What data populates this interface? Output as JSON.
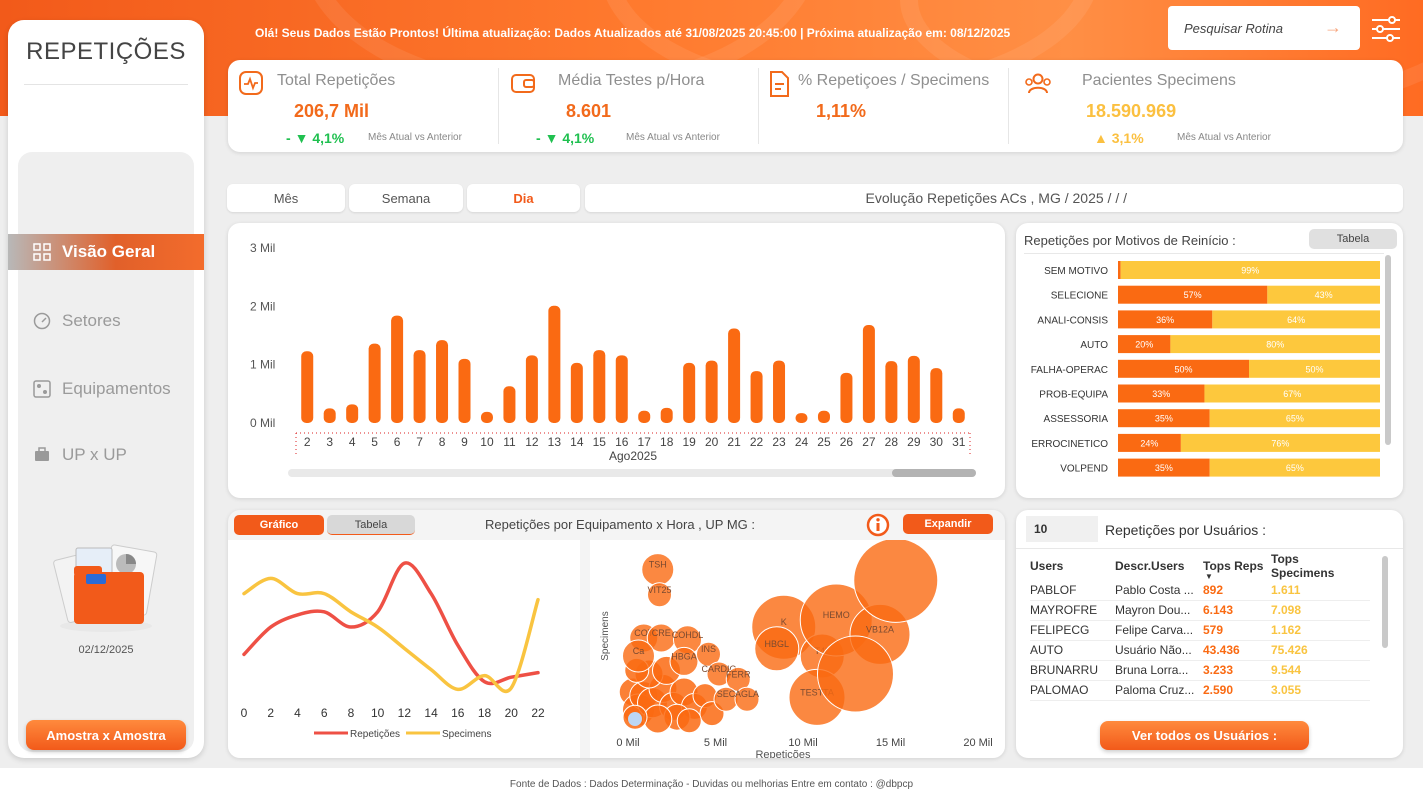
{
  "header": {
    "greeting": "Olá! Seus Dados Estão Prontos! Última atualização: Dados Atualizados até 31/08/2025 20:45:00 | Próxima atualização em: 08/12/2025",
    "search_placeholder": "Pesquisar Rotina"
  },
  "sidebar": {
    "title": "REPETIÇÕES",
    "items": [
      {
        "label": "Visão Geral",
        "icon": "grid-icon",
        "active": true
      },
      {
        "label": "Setores",
        "icon": "gauge-icon",
        "active": false
      },
      {
        "label": "Equipamentos",
        "icon": "equipment-icon",
        "active": false
      },
      {
        "label": "UP x UP",
        "icon": "briefcase-icon",
        "active": false
      }
    ],
    "date": "02/12/2025",
    "button": "Amostra x Amostra"
  },
  "kpis": [
    {
      "title": "Total Repetições",
      "value": "206,7 Mil",
      "delta": "4,1%",
      "delta_prefix": "- ",
      "trend": "down",
      "comparison": "Mês Atual vs Anterior",
      "icon": "activity-icon"
    },
    {
      "title": "Média Testes p/Hora",
      "value": "8.601",
      "delta": "4,1%",
      "delta_prefix": "- ",
      "trend": "down",
      "comparison": "Mês Atual vs Anterior",
      "icon": "wallet-icon"
    },
    {
      "title": "% Repetiçoes / Specimens",
      "value": "1,11%",
      "icon": "document-icon"
    },
    {
      "title": "Pacientes Specimens",
      "value": "18.590.969",
      "delta": "3,1%",
      "trend": "up",
      "comparison": "Mês Atual vs Anterior",
      "icon": "users-icon"
    }
  ],
  "period_tabs": {
    "month": "Mês",
    "week": "Semana",
    "day": "Dia",
    "selected": "Dia"
  },
  "evolution_title": "Evolução Repetições ACs , MG / 2025 / / /",
  "colors": {
    "orange": "#fa6a12",
    "yellow": "#fdc83d",
    "red": "#ee5045",
    "gold": "#f9c440"
  },
  "chart_data": [
    {
      "type": "bar",
      "title": "",
      "xlabel": "Ago2025",
      "ylabel": "",
      "y_ticks": [
        "0 Mil",
        "1 Mil",
        "2 Mil",
        "3 Mil"
      ],
      "ylim": [
        0,
        3000
      ],
      "categories": [
        "2",
        "3",
        "4",
        "5",
        "6",
        "7",
        "8",
        "9",
        "10",
        "11",
        "12",
        "13",
        "14",
        "15",
        "16",
        "17",
        "18",
        "19",
        "20",
        "21",
        "22",
        "23",
        "24",
        "25",
        "26",
        "27",
        "28",
        "29",
        "30",
        "31"
      ],
      "values": [
        1230,
        250,
        320,
        1360,
        1840,
        1250,
        1420,
        1100,
        190,
        630,
        1160,
        2010,
        1030,
        1250,
        1160,
        210,
        260,
        1030,
        1070,
        1620,
        890,
        1070,
        170,
        210,
        860,
        1680,
        1060,
        1150,
        940,
        250
      ]
    },
    {
      "type": "bar",
      "title": "Repetições por Motivos de Reinício :",
      "stacked": true,
      "categories": [
        "SEM MOTIVO",
        "SELECIONE",
        "ANALI-CONSIS",
        "AUTO",
        "FALHA-OPERAC",
        "PROB-EQUIPA",
        "ASSESSORIA",
        "ERROCINETICO",
        "VOLPEND"
      ],
      "series": [
        {
          "values": [
            1,
            57,
            36,
            20,
            50,
            33,
            35,
            24,
            35
          ],
          "labels": [
            "",
            "57%",
            "36%",
            "20%",
            "50%",
            "33%",
            "35%",
            "24%",
            "35%"
          ]
        },
        {
          "values": [
            99,
            43,
            64,
            80,
            50,
            67,
            65,
            76,
            65
          ],
          "labels": [
            "99%",
            "43%",
            "64%",
            "80%",
            "50%",
            "67%",
            "65%",
            "76%",
            "65%"
          ]
        }
      ]
    },
    {
      "type": "line",
      "title": "Repetições por Equipamento x Hora , UP MG :",
      "x": [
        0,
        2,
        4,
        6,
        8,
        10,
        12,
        14,
        16,
        18,
        20,
        22
      ],
      "x_ticks": [
        "0",
        "2",
        "4",
        "6",
        "8",
        "10",
        "12",
        "14",
        "16",
        "18",
        "20",
        "22"
      ],
      "series": [
        {
          "name": "Repetições",
          "values": [
            0.3,
            0.48,
            0.56,
            0.58,
            0.48,
            0.58,
            0.9,
            0.7,
            0.36,
            0.12,
            0.15,
            0.18
          ]
        },
        {
          "name": "Specimens",
          "values": [
            0.7,
            0.8,
            0.7,
            0.7,
            0.58,
            0.48,
            0.34,
            0.2,
            0.07,
            0.16,
            0.08,
            0.66
          ]
        }
      ]
    },
    {
      "type": "scatter",
      "xlabel": "Repetições",
      "ylabel": "Specimens",
      "x_ticks": [
        "0 Mil",
        "5 Mil",
        "10 Mil",
        "15 Mil",
        "20 Mil"
      ],
      "xlim": [
        0,
        20000
      ],
      "points": [
        {
          "label": "TSH",
          "x": 1700,
          "y": 0.88,
          "size": 16
        },
        {
          "label": "VIT25",
          "x": 1800,
          "y": 0.74,
          "size": 12
        },
        {
          "label": "COT",
          "x": 900,
          "y": 0.5,
          "size": 14
        },
        {
          "label": "CRE",
          "x": 1900,
          "y": 0.5,
          "size": 14
        },
        {
          "label": "COHDL",
          "x": 3400,
          "y": 0.49,
          "size": 14
        },
        {
          "label": "Ca",
          "x": 600,
          "y": 0.4,
          "size": 16
        },
        {
          "label": "HBGA",
          "x": 3200,
          "y": 0.37,
          "size": 14
        },
        {
          "label": "INS",
          "x": 4600,
          "y": 0.41,
          "size": 12
        },
        {
          "label": "CARDIO",
          "x": 5200,
          "y": 0.3,
          "size": 12
        },
        {
          "label": "FERR",
          "x": 6300,
          "y": 0.27,
          "size": 12
        },
        {
          "label": "SEC",
          "x": 5600,
          "y": 0.16,
          "size": 12
        },
        {
          "label": "AGLA",
          "x": 6800,
          "y": 0.16,
          "size": 12
        },
        {
          "label": "K",
          "x": 8900,
          "y": 0.56,
          "size": 32
        },
        {
          "label": "HBGL",
          "x": 8500,
          "y": 0.44,
          "size": 22
        },
        {
          "label": "T4L",
          "x": 11100,
          "y": 0.4,
          "size": 22
        },
        {
          "label": "HEMO",
          "x": 11900,
          "y": 0.6,
          "size": 36
        },
        {
          "label": "VB12A",
          "x": 14400,
          "y": 0.52,
          "size": 30
        },
        {
          "label": "TESTTA",
          "x": 10800,
          "y": 0.17,
          "size": 28
        },
        {
          "label": "",
          "x": 15300,
          "y": 0.82,
          "size": 42
        },
        {
          "label": "",
          "x": 13000,
          "y": 0.3,
          "size": 38
        }
      ]
    }
  ],
  "equip_panel": {
    "tab_chart": "Gráfico",
    "tab_table": "Tabela",
    "title": "Repetições por Equipamento x Hora , UP MG :",
    "expand": "Expandir"
  },
  "motivos_panel": {
    "title": "Repetições por Motivos de Reinício :",
    "table_btn": "Tabela"
  },
  "users": {
    "count": "10",
    "title": "Repetições por Usuários :",
    "columns": [
      "Users",
      "Descr.Users",
      "Tops Reps",
      "Tops Specimens"
    ],
    "rows": [
      [
        "PABLOF",
        "Pablo Costa ...",
        "892",
        "1.611"
      ],
      [
        "MAYROFRE",
        "Mayron Dou...",
        "6.143",
        "7.098"
      ],
      [
        "FELIPECG",
        "Felipe Carva...",
        "579",
        "1.162"
      ],
      [
        "AUTO",
        "Usuário Não...",
        "43.436",
        "75.426"
      ],
      [
        "BRUNARRU",
        "Bruna Lorra...",
        "3.233",
        "9.544"
      ],
      [
        "PALOMAO",
        "Paloma Cruz...",
        "2.590",
        "3.055"
      ]
    ],
    "button": "Ver todos os Usuários :"
  },
  "footer": "Fonte de Dados : Dados Determinação   -    Duvidas ou melhorias  Entre em contato : @dbpcp"
}
